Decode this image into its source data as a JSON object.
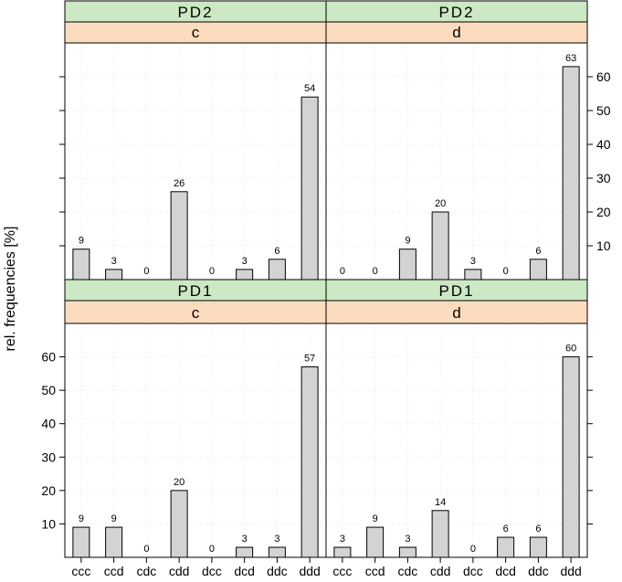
{
  "chart_data": {
    "type": "bar",
    "ylabel": "rel. frequencies [%]",
    "categories": [
      "ccc",
      "ccd",
      "cdc",
      "cdd",
      "dcc",
      "dcd",
      "ddc",
      "ddd"
    ],
    "ylim": [
      0,
      70
    ],
    "yticks": [
      10,
      20,
      30,
      40,
      50,
      60
    ],
    "grid": true,
    "colors": {
      "bar_fill": "#d3d3d3",
      "strip_outer": "#cce8c4",
      "strip_inner": "#fcdcbf"
    },
    "panels": [
      {
        "strip_outer": "PD2",
        "strip_inner": "c",
        "values": [
          9,
          3,
          0,
          26,
          0,
          3,
          6,
          54
        ]
      },
      {
        "strip_outer": "PD2",
        "strip_inner": "d",
        "values": [
          0,
          0,
          9,
          20,
          3,
          0,
          6,
          63
        ]
      },
      {
        "strip_outer": "PD1",
        "strip_inner": "c",
        "values": [
          9,
          9,
          0,
          20,
          0,
          3,
          3,
          57
        ]
      },
      {
        "strip_outer": "PD1",
        "strip_inner": "d",
        "values": [
          3,
          9,
          3,
          14,
          0,
          6,
          6,
          60
        ]
      }
    ]
  }
}
